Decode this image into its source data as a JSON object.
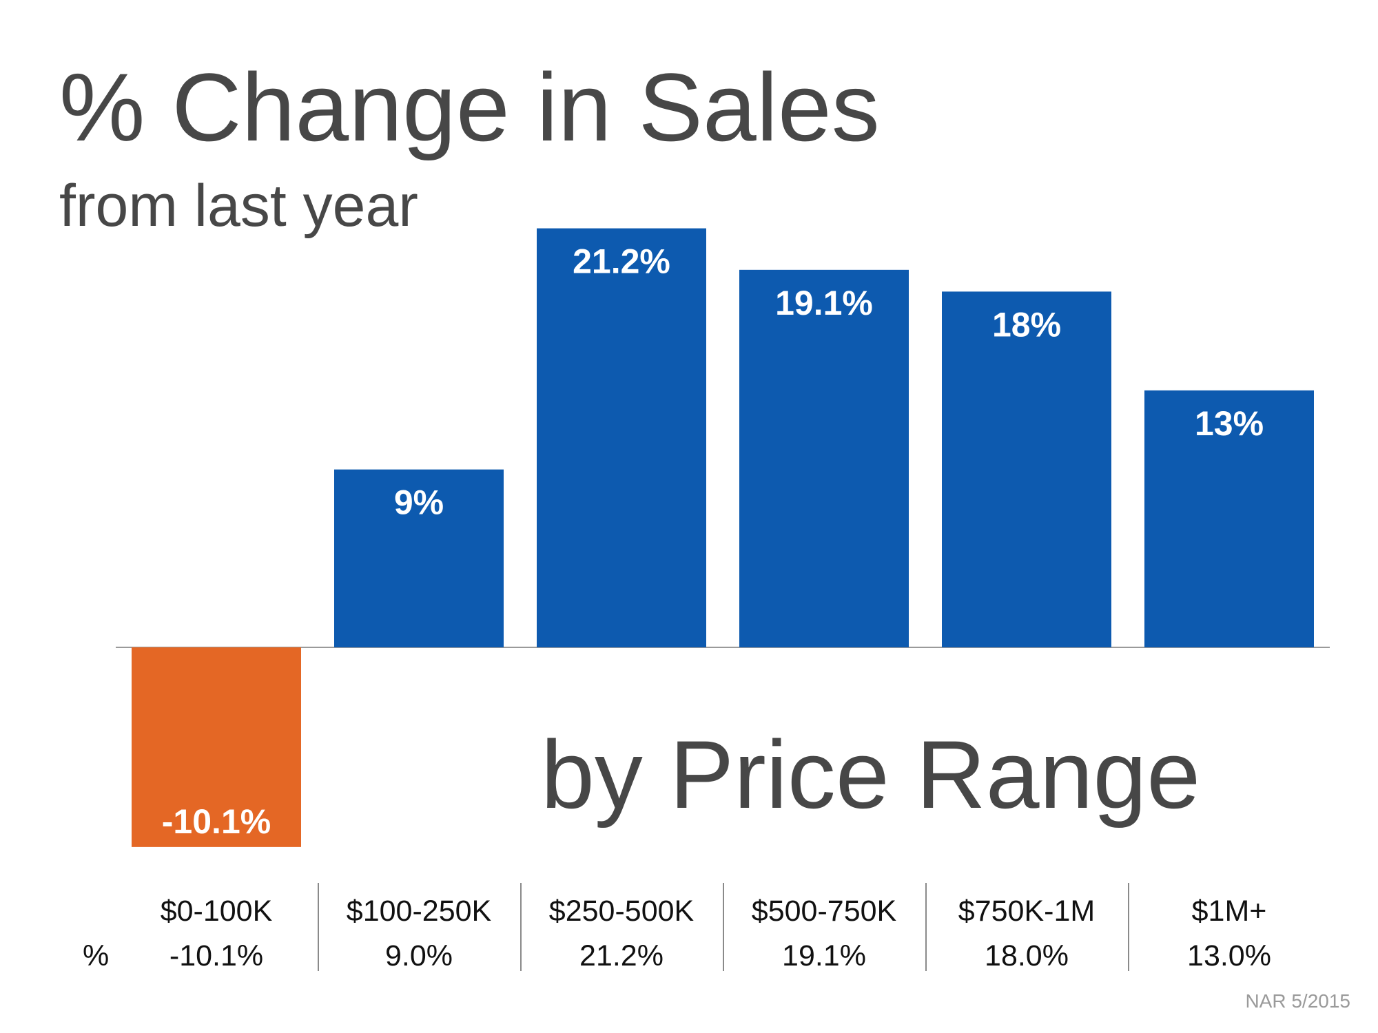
{
  "title": "% Change in Sales",
  "subtitle": "from last year",
  "overlay_text": "by Price Range",
  "source": "NAR 5/2015",
  "colors": {
    "positive": "#0d5aaf",
    "negative": "#e46725",
    "text": "#474747"
  },
  "chart_data": {
    "type": "bar",
    "categories": [
      "$0-100K",
      "$100-250K",
      "$250-500K",
      "$500-750K",
      "$750K-1M",
      "$1M+"
    ],
    "values": [
      -10.1,
      9.0,
      21.2,
      19.1,
      18.0,
      13.0
    ],
    "data_labels": [
      "-10.1%",
      "9%",
      "21.2%",
      "19.1%",
      "18%",
      "13%"
    ],
    "title": "% Change in Sales",
    "subtitle": "from last year",
    "xlabel": "",
    "ylabel": "",
    "ylim": [
      -10.1,
      21.2
    ],
    "grid": false,
    "legend": "none"
  },
  "table": {
    "row_label": "%",
    "headers": [
      "$0-100K",
      "$100-250K",
      "$250-500K",
      "$500-750K",
      "$750K-1M",
      "$1M+"
    ],
    "values": [
      "-10.1%",
      "9.0%",
      "21.2%",
      "19.1%",
      "18.0%",
      "13.0%"
    ]
  }
}
